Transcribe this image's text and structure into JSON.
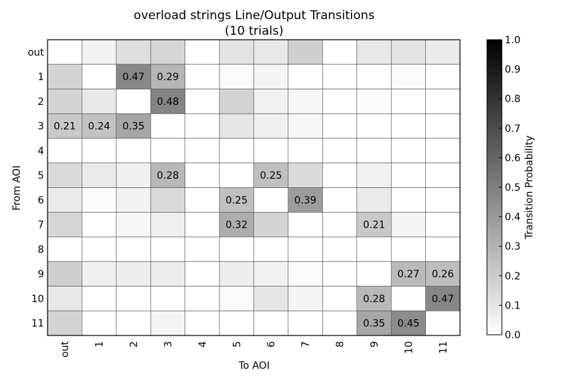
{
  "chart_data": {
    "type": "heatmap",
    "title": "overload strings Line/Output Transitions",
    "subtitle": "(10 trials)",
    "xlabel": "To AOI",
    "ylabel": "From AOI",
    "colorbar_label": "Transition Probability",
    "colorbar_ticks": [
      "0.0",
      "0.1",
      "0.2",
      "0.3",
      "0.4",
      "0.5",
      "0.6",
      "0.7",
      "0.8",
      "0.9",
      "1.0"
    ],
    "colormap": "greys",
    "value_range": [
      0,
      1
    ],
    "label_threshold": 0.2,
    "x_categories": [
      "out",
      "1",
      "2",
      "3",
      "4",
      "5",
      "6",
      "7",
      "8",
      "9",
      "10",
      "11"
    ],
    "y_categories": [
      "out",
      "1",
      "2",
      "3",
      "4",
      "5",
      "6",
      "7",
      "8",
      "9",
      "10",
      "11"
    ],
    "values": [
      [
        0.0,
        0.05,
        0.13,
        0.16,
        0.0,
        0.11,
        0.09,
        0.19,
        0.0,
        0.09,
        0.11,
        0.08
      ],
      [
        0.17,
        0.0,
        0.47,
        0.29,
        0.0,
        0.02,
        0.04,
        0.0,
        0.0,
        0.0,
        0.02,
        0.0
      ],
      [
        0.17,
        0.09,
        0.0,
        0.48,
        0.0,
        0.17,
        0.05,
        0.03,
        0.0,
        0.01,
        0.0,
        0.0
      ],
      [
        0.21,
        0.24,
        0.35,
        0.0,
        0.0,
        0.1,
        0.06,
        0.03,
        0.0,
        0.0,
        0.0,
        0.0
      ],
      [
        0.0,
        0.0,
        0.0,
        0.0,
        0.0,
        0.0,
        0.0,
        0.0,
        0.0,
        0.0,
        0.0,
        0.0
      ],
      [
        0.15,
        0.08,
        0.06,
        0.28,
        0.0,
        0.0,
        0.25,
        0.14,
        0.0,
        0.05,
        0.0,
        0.0
      ],
      [
        0.08,
        0.01,
        0.05,
        0.15,
        0.0,
        0.25,
        0.0,
        0.39,
        0.0,
        0.08,
        0.0,
        0.0
      ],
      [
        0.16,
        0.0,
        0.03,
        0.06,
        0.0,
        0.32,
        0.17,
        0.0,
        0.0,
        0.21,
        0.04,
        0.0
      ],
      [
        0.0,
        0.0,
        0.0,
        0.0,
        0.0,
        0.0,
        0.0,
        0.0,
        0.0,
        0.0,
        0.0,
        0.0
      ],
      [
        0.19,
        0.06,
        0.07,
        0.07,
        0.0,
        0.07,
        0.05,
        0.02,
        0.0,
        0.0,
        0.27,
        0.26
      ],
      [
        0.09,
        0.0,
        0.0,
        0.0,
        0.0,
        0.02,
        0.1,
        0.04,
        0.0,
        0.28,
        0.0,
        0.47
      ],
      [
        0.17,
        0.0,
        0.0,
        0.04,
        0.0,
        0.0,
        0.0,
        0.0,
        0.0,
        0.35,
        0.45,
        0.0
      ]
    ]
  }
}
